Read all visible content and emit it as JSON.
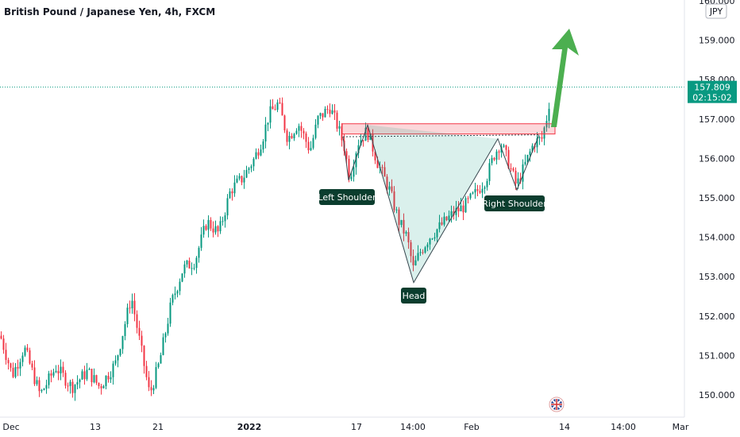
{
  "header": {
    "symbol_title": "British Pound / Japanese Yen, 4h, FXCM"
  },
  "currency_badge": "JPY",
  "price_tag": {
    "value": "157.809",
    "countdown": "02:15:02"
  },
  "chart_data": {
    "type": "candlestick",
    "title": "British Pound / Japanese Yen, 4h, FXCM",
    "ylim": [
      149.5,
      160.0
    ],
    "yticks": [
      "150.000",
      "151.000",
      "152.000",
      "153.000",
      "154.000",
      "155.000",
      "156.000",
      "157.000",
      "158.000",
      "159.000",
      "160.000"
    ],
    "ytick_values": [
      150,
      151,
      152,
      153,
      154,
      155,
      156,
      157,
      158,
      159,
      160
    ],
    "xticks": [
      "Dec",
      "13",
      "21",
      "2022",
      "17",
      "14:00",
      "Feb",
      "14",
      "14:00",
      "Mar"
    ],
    "grid": false,
    "current_price": 157.809,
    "resistance_zone": [
      156.62,
      156.88
    ],
    "annotations": [
      "Left Shoulder",
      "Head",
      "Right Shoulder"
    ],
    "pattern_points": [
      {
        "name": "left-shoulder-start",
        "price": 156.55
      },
      {
        "name": "left-shoulder-low",
        "price": 155.45
      },
      {
        "name": "left-shoulder-end",
        "price": 156.85
      },
      {
        "name": "head-low",
        "price": 152.85
      },
      {
        "name": "right-shoulder-start",
        "price": 156.5
      },
      {
        "name": "right-shoulder-low",
        "price": 155.2
      },
      {
        "name": "right-shoulder-end",
        "price": 156.6
      }
    ],
    "path": [
      [
        0,
        151.5
      ],
      [
        15,
        150.5
      ],
      [
        30,
        151.2
      ],
      [
        50,
        150.0
      ],
      [
        70,
        150.7
      ],
      [
        90,
        150.2
      ],
      [
        110,
        150.6
      ],
      [
        125,
        150.2
      ],
      [
        145,
        150.8
      ],
      [
        158,
        151.9
      ],
      [
        165,
        152.5
      ],
      [
        175,
        151.4
      ],
      [
        188,
        150.0
      ],
      [
        200,
        150.8
      ],
      [
        215,
        152.3
      ],
      [
        230,
        153.2
      ],
      [
        245,
        153.4
      ],
      [
        260,
        154.4
      ],
      [
        275,
        154.1
      ],
      [
        290,
        155.2
      ],
      [
        305,
        155.5
      ],
      [
        320,
        156.0
      ],
      [
        330,
        156.5
      ],
      [
        338,
        157.1
      ],
      [
        350,
        157.4
      ],
      [
        362,
        156.5
      ],
      [
        375,
        156.9
      ],
      [
        390,
        156.2
      ],
      [
        400,
        157.0
      ],
      [
        415,
        157.3
      ],
      [
        425,
        156.8
      ],
      [
        433,
        156.3
      ],
      [
        440,
        155.5
      ],
      [
        450,
        156.4
      ],
      [
        462,
        156.7
      ],
      [
        475,
        155.9
      ],
      [
        490,
        155.2
      ],
      [
        502,
        154.4
      ],
      [
        512,
        154.0
      ],
      [
        520,
        153.2
      ],
      [
        528,
        153.6
      ],
      [
        540,
        154.0
      ],
      [
        555,
        154.3
      ],
      [
        570,
        154.6
      ],
      [
        585,
        154.8
      ],
      [
        598,
        155.1
      ],
      [
        612,
        155.5
      ],
      [
        622,
        156.1
      ],
      [
        630,
        156.4
      ],
      [
        640,
        155.9
      ],
      [
        650,
        155.3
      ],
      [
        660,
        155.8
      ],
      [
        672,
        156.4
      ],
      [
        682,
        156.5
      ],
      [
        690,
        157.2
      ],
      [
        693,
        157.8
      ]
    ]
  }
}
